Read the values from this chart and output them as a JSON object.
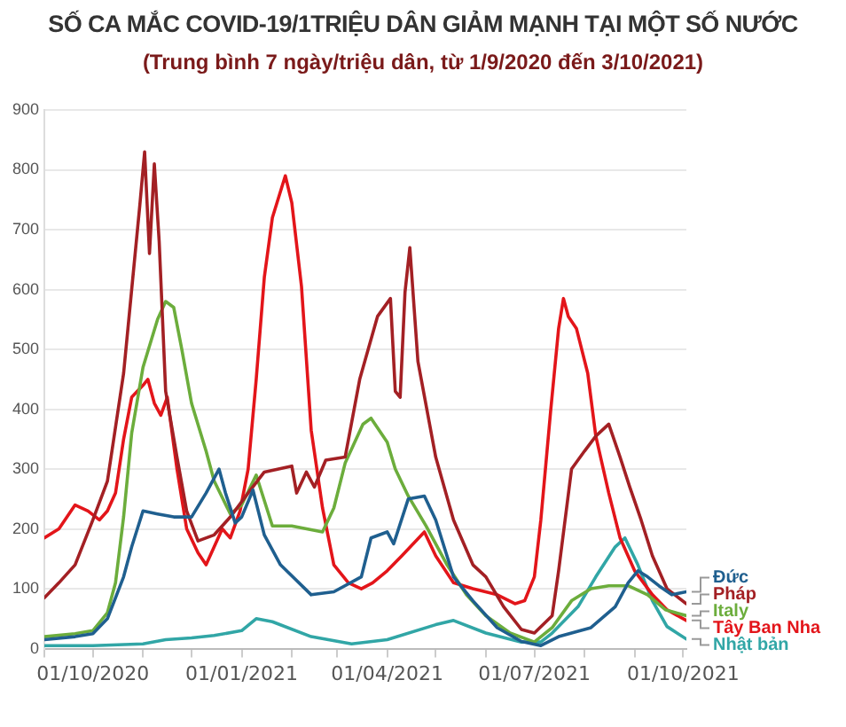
{
  "chart_data": {
    "type": "line",
    "title": "SỐ CA MẮC COVID-19/1TRIỆU DÂN GIẢM MẠNH TẠI MỘT SỐ NƯỚC",
    "subtitle": "(Trung bình 7 ngày/triệu dân, từ 1/9/2020 đến 3/10/2021)",
    "xlim": [
      "2020-09-01",
      "2021-10-03"
    ],
    "xticks": [
      {
        "value": "2020-09-01",
        "label": null
      },
      {
        "value": "2020-10-01",
        "label": "01/10/2020"
      },
      {
        "value": "2020-11-01",
        "label": null
      },
      {
        "value": "2020-12-01",
        "label": null
      },
      {
        "value": "2021-01-01",
        "label": "01/01/2021"
      },
      {
        "value": "2021-02-01",
        "label": null
      },
      {
        "value": "2021-03-01",
        "label": null
      },
      {
        "value": "2021-04-01",
        "label": "01/04/2021"
      },
      {
        "value": "2021-05-01",
        "label": null
      },
      {
        "value": "2021-06-01",
        "label": null
      },
      {
        "value": "2021-07-01",
        "label": "01/07/2021"
      },
      {
        "value": "2021-08-01",
        "label": null
      },
      {
        "value": "2021-09-01",
        "label": null
      },
      {
        "value": "2021-10-01",
        "label": "01/10/2021"
      }
    ],
    "ylim": [
      0,
      900
    ],
    "yticks": [
      0,
      100,
      200,
      300,
      400,
      500,
      600,
      700,
      800,
      900
    ],
    "grid": "y",
    "legend": false,
    "marker": "none",
    "line_style": "solid",
    "series": [
      {
        "name": "Đức",
        "color": "#1f5f8f",
        "x": [
          "2020-09-01",
          "2020-09-20",
          "2020-10-01",
          "2020-10-10",
          "2020-10-20",
          "2020-10-25",
          "2020-11-01",
          "2020-11-10",
          "2020-11-20",
          "2020-12-01",
          "2020-12-10",
          "2020-12-18",
          "2020-12-22",
          "2020-12-28",
          "2021-01-01",
          "2021-01-08",
          "2021-01-15",
          "2021-01-25",
          "2021-02-13",
          "2021-02-27",
          "2021-03-16",
          "2021-03-22",
          "2021-04-01",
          "2021-04-05",
          "2021-04-14",
          "2021-04-24",
          "2021-05-01",
          "2021-05-12",
          "2021-05-24",
          "2021-06-08",
          "2021-06-23",
          "2021-07-05",
          "2021-07-16",
          "2021-08-05",
          "2021-08-20",
          "2021-08-28",
          "2021-09-03",
          "2021-09-09",
          "2021-09-16",
          "2021-09-24",
          "2021-10-03"
        ],
        "values": [
          15,
          20,
          25,
          50,
          120,
          170,
          230,
          225,
          220,
          220,
          260,
          300,
          260,
          210,
          220,
          265,
          190,
          140,
          90,
          95,
          120,
          185,
          195,
          175,
          250,
          255,
          215,
          120,
          80,
          35,
          12,
          5,
          20,
          35,
          70,
          110,
          130,
          120,
          105,
          90,
          95
        ]
      },
      {
        "name": "Pháp",
        "color": "#a32024",
        "x": [
          "2020-09-01",
          "2020-09-10",
          "2020-09-20",
          "2020-10-01",
          "2020-10-10",
          "2020-10-20",
          "2020-10-25",
          "2020-10-30",
          "2020-11-02",
          "2020-11-05",
          "2020-11-08",
          "2020-11-11",
          "2020-11-15",
          "2020-11-22",
          "2020-11-28",
          "2020-12-05",
          "2020-12-15",
          "2020-12-25",
          "2021-01-05",
          "2021-01-15",
          "2021-02-01",
          "2021-02-04",
          "2021-02-10",
          "2021-02-15",
          "2021-02-22",
          "2021-03-06",
          "2021-03-15",
          "2021-03-26",
          "2021-04-03",
          "2021-04-06",
          "2021-04-09",
          "2021-04-12",
          "2021-04-15",
          "2021-04-20",
          "2021-05-01",
          "2021-05-12",
          "2021-05-24",
          "2021-06-01",
          "2021-06-12",
          "2021-06-23",
          "2021-07-01",
          "2021-07-12",
          "2021-07-16",
          "2021-07-24",
          "2021-08-01",
          "2021-08-08",
          "2021-08-16",
          "2021-08-23",
          "2021-08-29",
          "2021-09-05",
          "2021-09-12",
          "2021-09-21",
          "2021-10-03"
        ],
        "values": [
          85,
          110,
          140,
          215,
          280,
          460,
          600,
          740,
          830,
          660,
          810,
          680,
          430,
          320,
          230,
          180,
          190,
          220,
          260,
          295,
          305,
          260,
          295,
          270,
          315,
          320,
          450,
          555,
          585,
          430,
          420,
          595,
          670,
          480,
          320,
          215,
          140,
          120,
          70,
          32,
          26,
          55,
          130,
          300,
          330,
          355,
          375,
          320,
          270,
          215,
          155,
          100,
          75
        ]
      },
      {
        "name": "Italy",
        "color": "#6cad3c",
        "x": [
          "2020-09-01",
          "2020-09-20",
          "2020-10-01",
          "2020-10-10",
          "2020-10-15",
          "2020-10-20",
          "2020-10-25",
          "2020-11-01",
          "2020-11-10",
          "2020-11-15",
          "2020-11-20",
          "2020-11-25",
          "2020-12-01",
          "2020-12-10",
          "2020-12-15",
          "2020-12-25",
          "2021-01-01",
          "2021-01-10",
          "2021-01-20",
          "2021-02-01",
          "2021-02-20",
          "2021-02-27",
          "2021-03-06",
          "2021-03-17",
          "2021-03-22",
          "2021-04-01",
          "2021-04-06",
          "2021-04-14",
          "2021-04-25",
          "2021-05-08",
          "2021-05-20",
          "2021-06-01",
          "2021-06-16",
          "2021-07-01",
          "2021-07-12",
          "2021-07-24",
          "2021-08-05",
          "2021-08-16",
          "2021-08-28",
          "2021-09-09",
          "2021-09-20",
          "2021-10-03"
        ],
        "values": [
          20,
          25,
          30,
          60,
          110,
          220,
          360,
          470,
          550,
          580,
          570,
          500,
          410,
          330,
          280,
          225,
          240,
          290,
          205,
          205,
          195,
          235,
          310,
          375,
          385,
          345,
          300,
          255,
          205,
          140,
          90,
          55,
          26,
          11,
          35,
          80,
          100,
          105,
          105,
          90,
          65,
          55
        ]
      },
      {
        "name": "Tây Ban Nha",
        "color": "#e3151a",
        "x": [
          "2020-09-01",
          "2020-09-10",
          "2020-09-20",
          "2020-09-28",
          "2020-10-05",
          "2020-10-10",
          "2020-10-15",
          "2020-10-20",
          "2020-10-25",
          "2020-11-01",
          "2020-11-04",
          "2020-11-08",
          "2020-11-12",
          "2020-11-16",
          "2020-11-22",
          "2020-11-28",
          "2020-12-05",
          "2020-12-10",
          "2020-12-15",
          "2020-12-20",
          "2020-12-25",
          "2020-12-31",
          "2021-01-05",
          "2021-01-10",
          "2021-01-15",
          "2021-01-20",
          "2021-01-28",
          "2021-02-01",
          "2021-02-07",
          "2021-02-13",
          "2021-02-20",
          "2021-02-27",
          "2021-03-08",
          "2021-03-16",
          "2021-03-23",
          "2021-04-01",
          "2021-04-10",
          "2021-04-24",
          "2021-05-01",
          "2021-05-12",
          "2021-05-24",
          "2021-06-08",
          "2021-06-19",
          "2021-06-25",
          "2021-07-01",
          "2021-07-05",
          "2021-07-11",
          "2021-07-16",
          "2021-07-19",
          "2021-07-22",
          "2021-07-27",
          "2021-08-03",
          "2021-08-08",
          "2021-08-16",
          "2021-08-23",
          "2021-09-01",
          "2021-09-12",
          "2021-09-21",
          "2021-10-03"
        ],
        "values": [
          185,
          200,
          240,
          230,
          215,
          230,
          260,
          350,
          420,
          440,
          450,
          410,
          390,
          420,
          300,
          200,
          160,
          140,
          170,
          200,
          185,
          230,
          300,
          450,
          620,
          720,
          790,
          745,
          605,
          365,
          235,
          140,
          110,
          100,
          110,
          130,
          155,
          195,
          155,
          110,
          100,
          90,
          75,
          80,
          120,
          215,
          395,
          535,
          585,
          555,
          535,
          460,
          355,
          260,
          185,
          130,
          90,
          65,
          47
        ]
      },
      {
        "name": "Nhật bản",
        "color": "#31a6a6",
        "x": [
          "2020-09-01",
          "2020-10-01",
          "2020-11-01",
          "2020-11-15",
          "2020-12-01",
          "2020-12-15",
          "2021-01-01",
          "2021-01-10",
          "2021-01-20",
          "2021-02-13",
          "2021-03-10",
          "2021-04-01",
          "2021-05-01",
          "2021-05-12",
          "2021-06-01",
          "2021-06-23",
          "2021-07-05",
          "2021-07-12",
          "2021-07-28",
          "2021-08-08",
          "2021-08-20",
          "2021-08-26",
          "2021-09-03",
          "2021-09-12",
          "2021-09-21",
          "2021-10-03"
        ],
        "values": [
          5,
          5,
          8,
          15,
          18,
          22,
          30,
          50,
          45,
          20,
          8,
          15,
          40,
          47,
          26,
          11,
          11,
          26,
          70,
          120,
          170,
          185,
          140,
          80,
          37,
          16
        ]
      }
    ]
  }
}
